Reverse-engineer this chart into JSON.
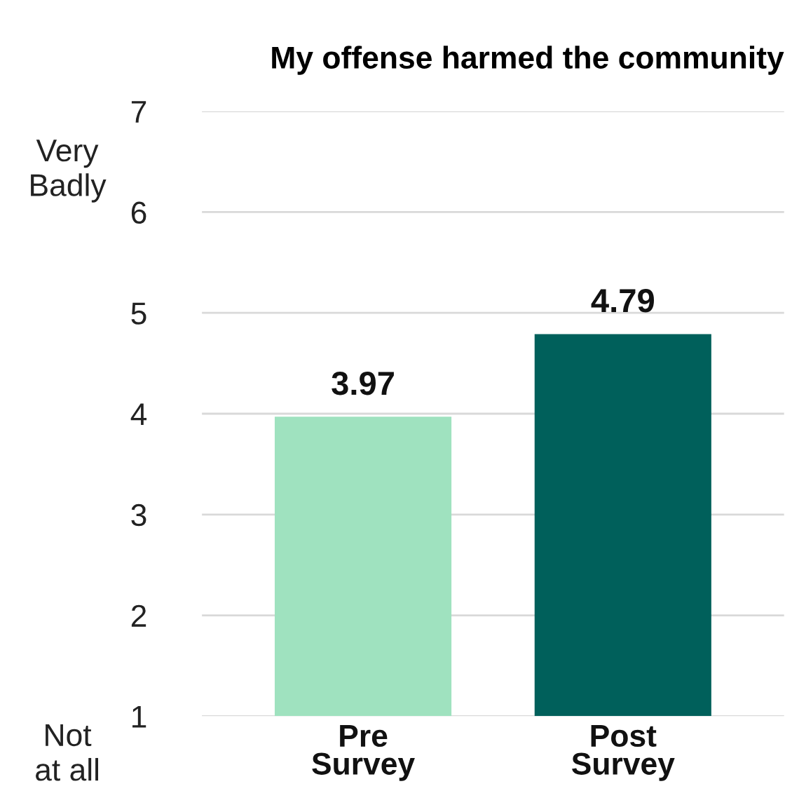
{
  "chart_data": {
    "type": "bar",
    "title": "My offense harmed the community",
    "categories": [
      "Pre\nSurvey",
      "Post\nSurvey"
    ],
    "values": [
      3.97,
      4.79
    ],
    "colors": [
      "#9fe2bf",
      "#00605b"
    ],
    "ylim": [
      1,
      7
    ],
    "yticks": [
      1,
      2,
      3,
      4,
      5,
      6,
      7
    ],
    "grid": "y",
    "data_labels": true,
    "annotations": [
      "Very\nBadly",
      "Not\nat all"
    ]
  }
}
